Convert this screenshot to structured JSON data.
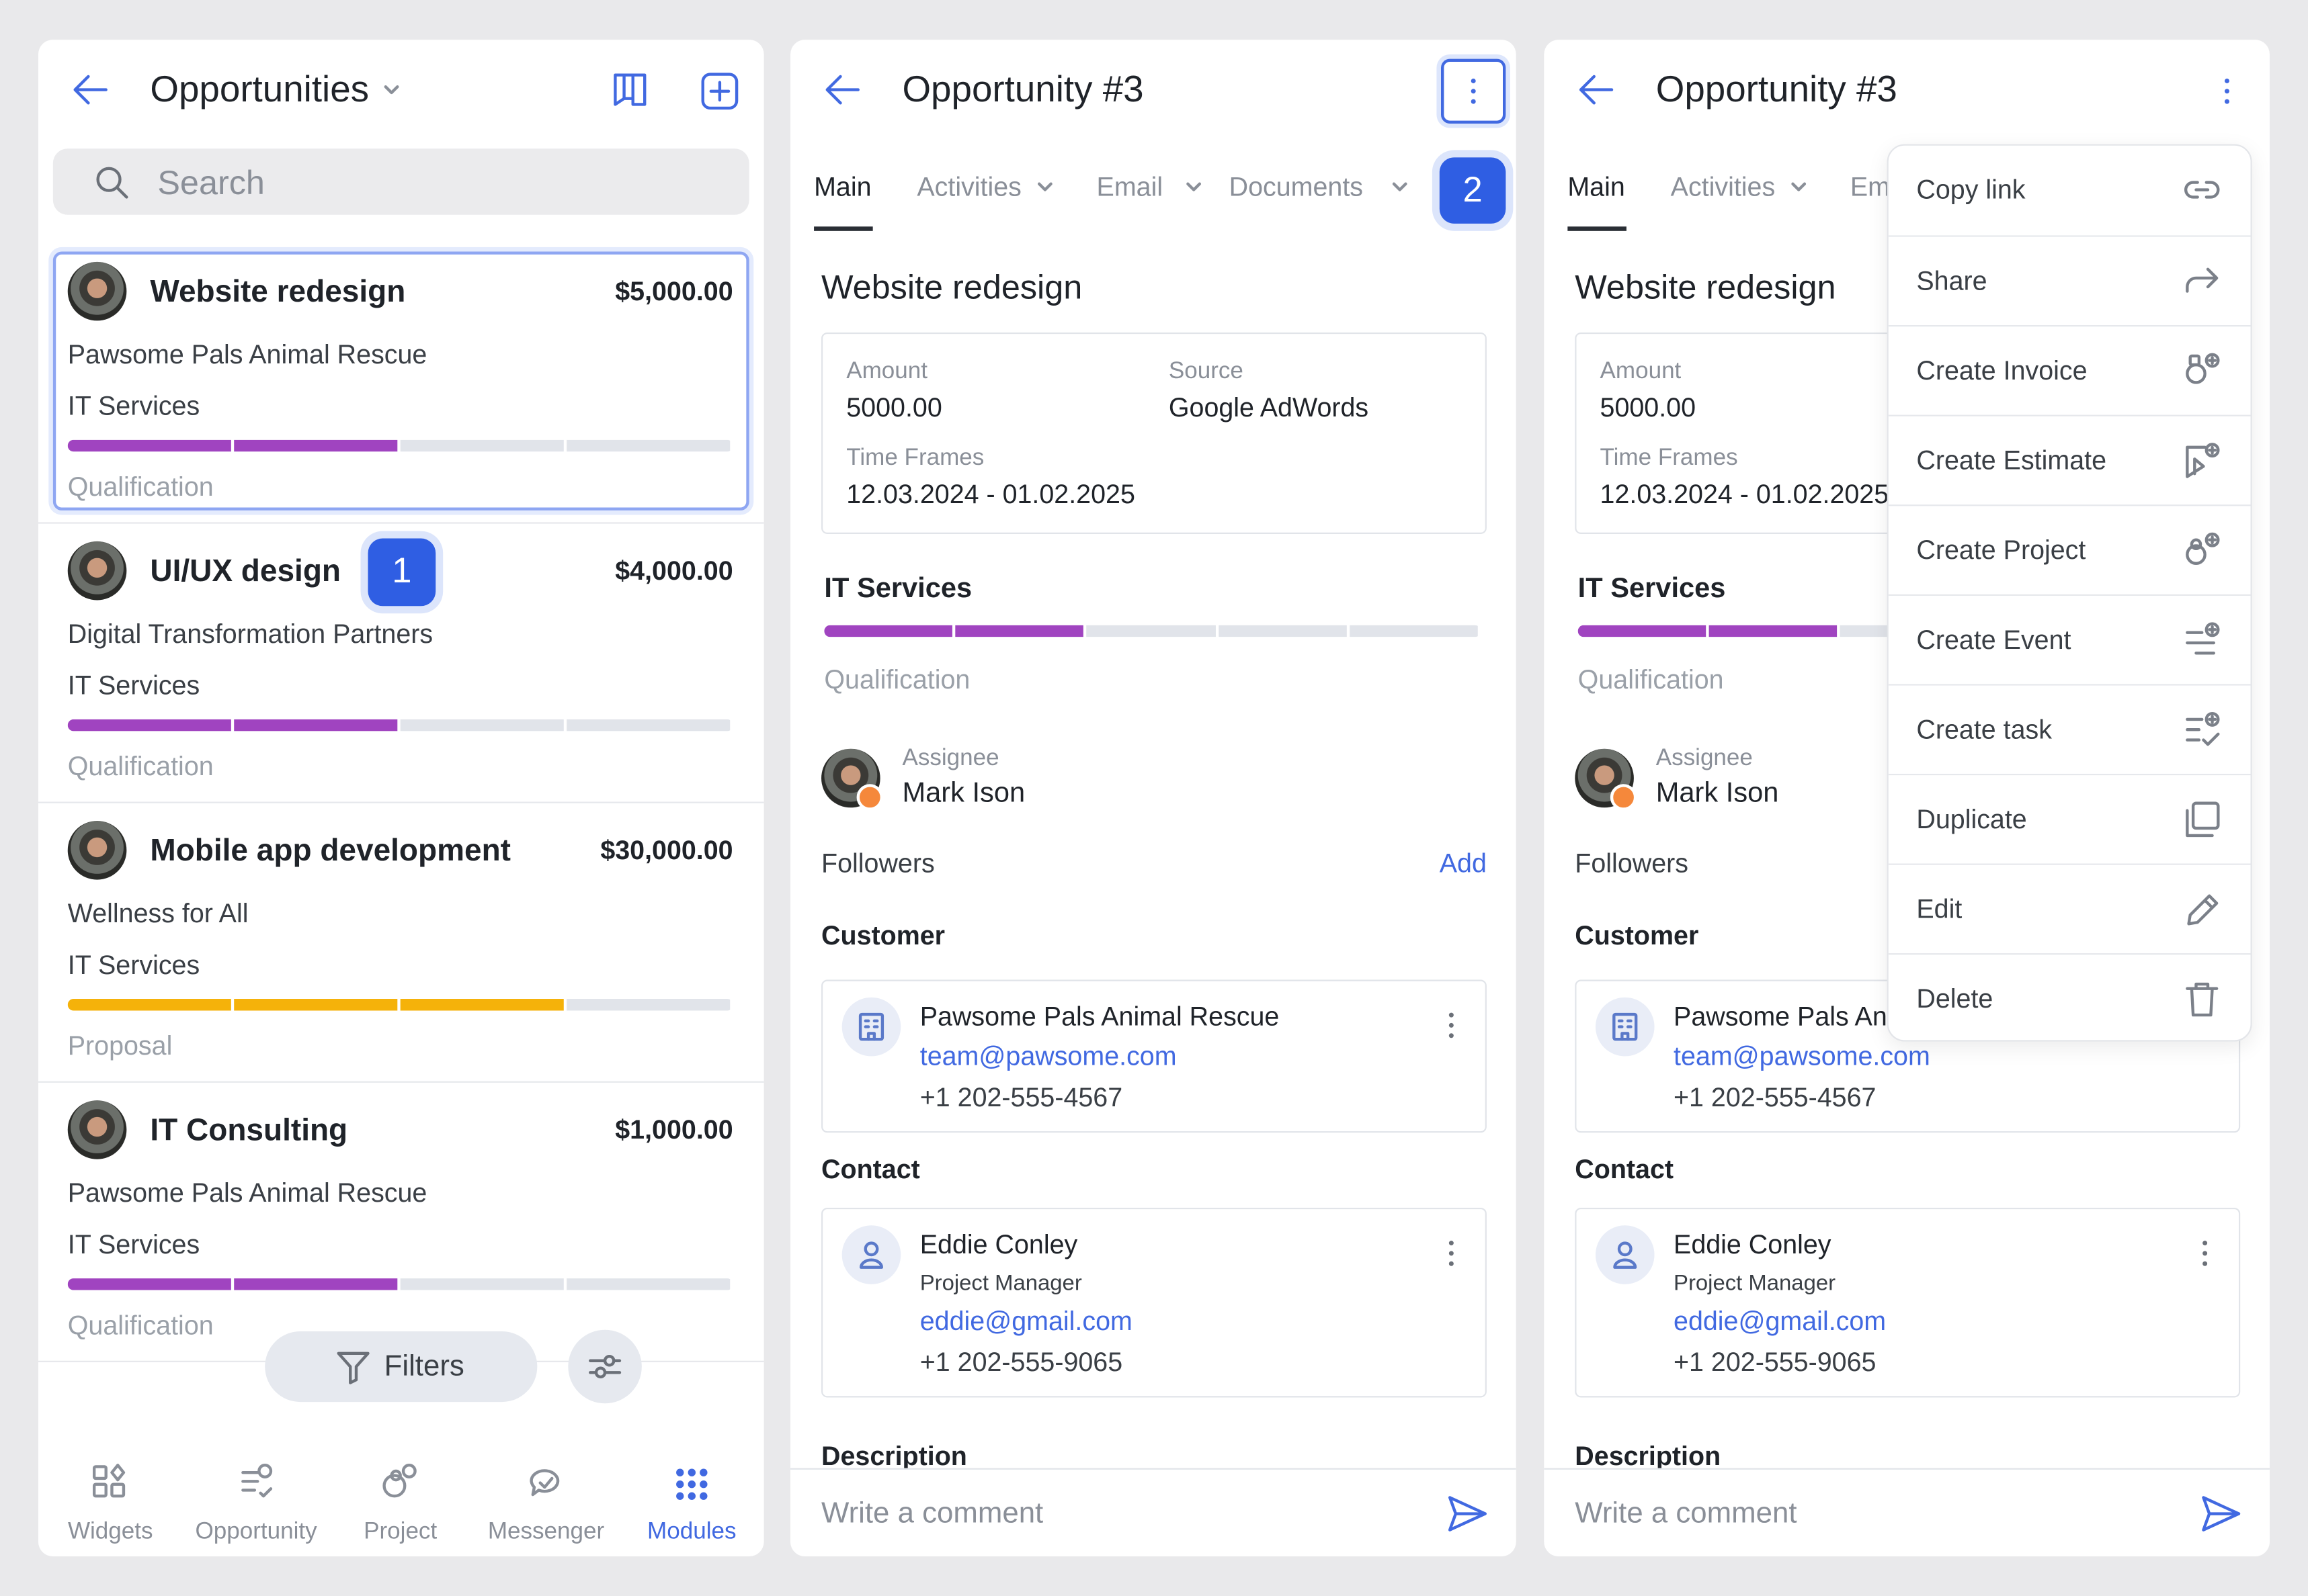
{
  "list_screen": {
    "title": "Opportunities",
    "search_placeholder": "Search",
    "items": [
      {
        "title": "Website redesign",
        "amount": "$5,000.00",
        "company": "Pawsome Pals Animal Rescue",
        "category": "IT Services",
        "stage": "Qualification"
      },
      {
        "title": "UI/UX design",
        "amount": "$4,000.00",
        "company": "Digital Transformation Partners",
        "category": "IT Services",
        "stage": "Qualification"
      },
      {
        "title": "Mobile app development",
        "amount": "$30,000.00",
        "company": "Wellness for All",
        "category": "IT Services",
        "stage": "Proposal"
      },
      {
        "title": "IT Consulting",
        "amount": "$1,000.00",
        "company": "Pawsome Pals Animal Rescue",
        "category": "IT Services",
        "stage": "Qualification"
      }
    ],
    "badge": "1",
    "filters": "Filters",
    "nav": [
      "Widgets",
      "Opportunity",
      "Project",
      "Messenger",
      "Modules"
    ]
  },
  "detail_screen": {
    "title": "Opportunity #3",
    "tabs": [
      "Main",
      "Activities",
      "Email",
      "Documents"
    ],
    "badge": "2",
    "heading": "Website redesign",
    "fields": [
      {
        "label": "Amount",
        "value": "5000.00"
      },
      {
        "label": "Source",
        "value": "Google AdWords"
      },
      {
        "label": "Time Frames",
        "value": "12.03.2024 - 01.02.2025"
      }
    ],
    "category": "IT Services",
    "stage": "Qualification",
    "assignee_label": "Assignee",
    "assignee": "Mark Ison",
    "followers_label": "Followers",
    "add": "Add",
    "customer_label": "Customer",
    "customer": {
      "name": "Pawsome Pals Animal Rescue",
      "email": "team@pawsome.com",
      "phone": "+1 202-555-4567"
    },
    "contact_label": "Contact",
    "contact": {
      "name": "Eddie Conley",
      "role": "Project Manager",
      "email": "eddie@gmail.com",
      "phone": "+1 202-555-9065"
    },
    "description_label": "Description",
    "comment_placeholder": "Write a comment"
  },
  "menu": [
    "Copy link",
    "Share",
    "Create Invoice",
    "Create Estimate",
    "Create Project",
    "Create Event",
    "Create task",
    "Duplicate",
    "Edit",
    "Delete"
  ]
}
